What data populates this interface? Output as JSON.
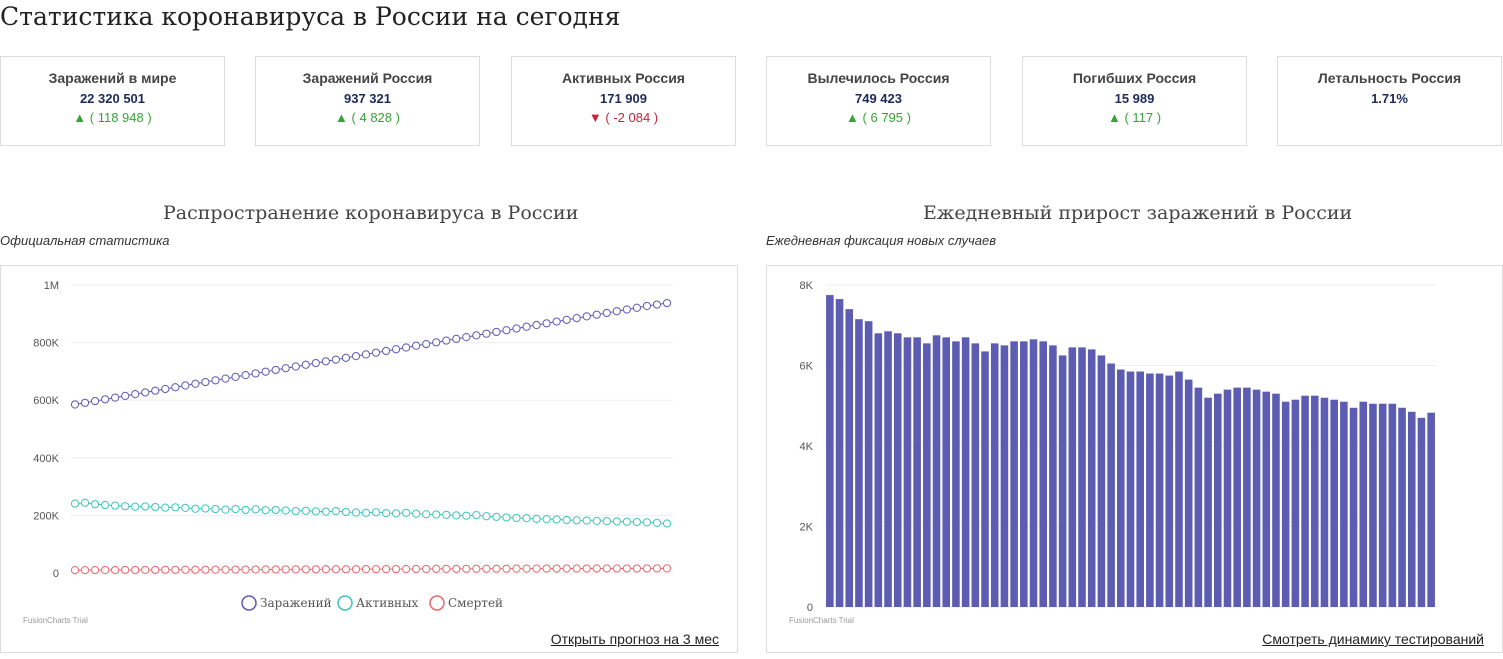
{
  "page_title": "Статистика коронавируса в России на сегодня",
  "cards": [
    {
      "label": "Заражений в мире",
      "value": "22 320 501",
      "delta": "( 118 948 )",
      "trend": "up",
      "arrow": "▲"
    },
    {
      "label": "Заражений Россия",
      "value": "937 321",
      "delta": "( 4 828 )",
      "trend": "up",
      "arrow": "▲"
    },
    {
      "label": "Активных Россия",
      "value": "171 909",
      "delta": "( -2 084 )",
      "trend": "down",
      "arrow": "▼"
    },
    {
      "label": "Вылечилось Россия",
      "value": "749 423",
      "delta": "( 6 795 )",
      "trend": "up",
      "arrow": "▲"
    },
    {
      "label": "Погибших Россия",
      "value": "15 989",
      "delta": "( 117 )",
      "trend": "up",
      "arrow": "▲"
    },
    {
      "label": "Летальность Россия",
      "value": "1.71%",
      "delta": "",
      "trend": "",
      "arrow": ""
    }
  ],
  "colors": {
    "up": "#3aa03a",
    "down": "#c8233b",
    "bar": "#5c5cb3",
    "infected": "#5c5cb3",
    "active": "#3cc6bd",
    "deaths": "#e8676f"
  },
  "left_panel": {
    "title": "Распространение коронавируса в России",
    "subtitle": "Официальная статистика",
    "link": "Открыть прогноз на 3 мес",
    "trial": "FusionCharts Trial"
  },
  "right_panel": {
    "title": "Ежедневный прирост заражений в России",
    "subtitle": "Ежедневная фиксация новых случаев",
    "link": "Смотреть динамику тестирований",
    "trial": "FusionCharts Trial"
  },
  "chart_data": [
    {
      "type": "line",
      "title": "Распространение коронавируса в России",
      "subtitle": "Официальная статистика",
      "ylim": [
        0,
        1000000
      ],
      "y_ticks": [
        0,
        200000,
        400000,
        600000,
        800000,
        1000000
      ],
      "y_tick_labels": [
        "0",
        "200K",
        "400K",
        "600K",
        "800K",
        "1M"
      ],
      "legend_position": "bottom",
      "grid": true,
      "series": [
        {
          "name": "Заражений",
          "color": "#5c5cb3",
          "values": [
            585000,
            591000,
            597000,
            603000,
            609000,
            615000,
            621000,
            627000,
            633000,
            639000,
            645000,
            651000,
            657000,
            663000,
            669000,
            675000,
            681000,
            687000,
            693000,
            699000,
            705000,
            711000,
            717000,
            723000,
            729000,
            735000,
            741000,
            747000,
            753000,
            759000,
            765000,
            771000,
            777000,
            783000,
            789000,
            795000,
            801000,
            807000,
            813000,
            819000,
            825000,
            831000,
            837000,
            843000,
            849000,
            855000,
            861000,
            867000,
            873000,
            879000,
            885000,
            891000,
            897000,
            903000,
            909000,
            915000,
            921000,
            927000,
            932000,
            937321
          ]
        },
        {
          "name": "Активных",
          "color": "#3cc6bd",
          "values": [
            241000,
            244000,
            239000,
            236000,
            234000,
            232000,
            230000,
            231000,
            229000,
            227000,
            228000,
            226000,
            223000,
            224000,
            222000,
            220000,
            222000,
            219000,
            221000,
            218000,
            219000,
            217000,
            215000,
            216000,
            214000,
            213000,
            215000,
            212000,
            210000,
            209000,
            211000,
            208000,
            207000,
            209000,
            206000,
            204000,
            203000,
            202000,
            200000,
            199000,
            201000,
            197000,
            195000,
            193000,
            191000,
            190000,
            188000,
            187000,
            186000,
            184000,
            183000,
            182000,
            181000,
            180000,
            179000,
            178000,
            177000,
            176000,
            174000,
            171909
          ]
        },
        {
          "name": "Смертей",
          "color": "#e8676f",
          "values": [
            10000,
            10100,
            10200,
            10300,
            10400,
            10600,
            10700,
            10800,
            10900,
            11000,
            11100,
            11300,
            11400,
            11500,
            11600,
            11700,
            11900,
            12000,
            12100,
            12200,
            12300,
            12400,
            12600,
            12700,
            12800,
            12900,
            13000,
            13100,
            13300,
            13400,
            13500,
            13600,
            13700,
            13900,
            14000,
            14100,
            14200,
            14300,
            14400,
            14600,
            14700,
            14800,
            14900,
            15000,
            15100,
            15200,
            15300,
            15400,
            15450,
            15500,
            15550,
            15600,
            15650,
            15700,
            15750,
            15800,
            15850,
            15900,
            15950,
            15989
          ]
        }
      ]
    },
    {
      "type": "bar",
      "title": "Ежедневный прирост заражений в России",
      "subtitle": "Ежедневная фиксация новых случаев",
      "ylim": [
        0,
        8000
      ],
      "y_ticks": [
        0,
        2000,
        4000,
        6000,
        8000
      ],
      "y_tick_labels": [
        "0",
        "2K",
        "4K",
        "6K",
        "8K"
      ],
      "grid": true,
      "values": [
        7750,
        7650,
        7400,
        7150,
        7100,
        6800,
        6850,
        6800,
        6700,
        6700,
        6550,
        6750,
        6700,
        6600,
        6700,
        6550,
        6350,
        6550,
        6500,
        6600,
        6600,
        6650,
        6600,
        6500,
        6250,
        6450,
        6450,
        6400,
        6250,
        6050,
        5900,
        5850,
        5850,
        5800,
        5800,
        5750,
        5850,
        5650,
        5450,
        5200,
        5300,
        5400,
        5450,
        5450,
        5400,
        5350,
        5300,
        5100,
        5150,
        5250,
        5250,
        5200,
        5150,
        5100,
        4950,
        5100,
        5050,
        5050,
        5050,
        4950,
        4850,
        4700,
        4828
      ]
    }
  ]
}
